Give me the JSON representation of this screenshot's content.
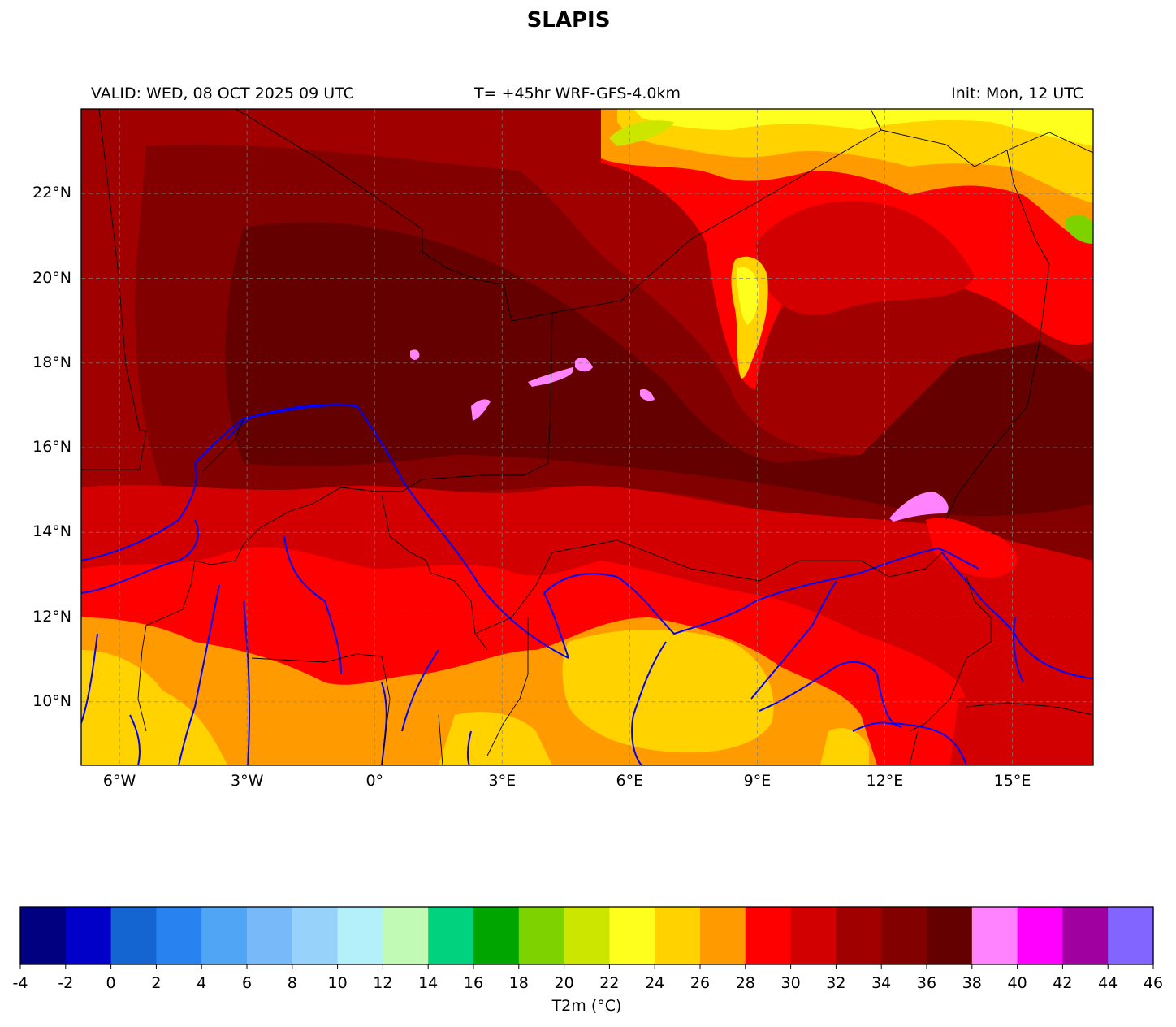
{
  "header": {
    "title": "SLAPIS",
    "valid_text": "VALID: WED, 08 OCT 2025 09 UTC",
    "run_text": "T= +45hr WRF-GFS-4.0km",
    "init_text": "Init: Mon, 12 UTC"
  },
  "map": {
    "lat_labels": [
      "22°N",
      "20°N",
      "18°N",
      "16°N",
      "14°N",
      "12°N",
      "10°N"
    ],
    "lon_labels": [
      "6°W",
      "3°W",
      "0°",
      "3°E",
      "6°E",
      "9°E",
      "12°E",
      "15°E"
    ],
    "extent": {
      "lon_min": -6.9,
      "lon_max": 16.9,
      "lat_min": 8.5,
      "lat_max": 24.0
    },
    "gridlines": true,
    "field": "T2m"
  },
  "colorbar": {
    "label": "T2m (°C)",
    "ticks": [
      "-4",
      "-2",
      "0",
      "2",
      "4",
      "6",
      "8",
      "10",
      "12",
      "14",
      "16",
      "18",
      "20",
      "22",
      "24",
      "26",
      "28",
      "30",
      "32",
      "34",
      "36",
      "38",
      "40",
      "42",
      "44",
      "46"
    ],
    "colors": [
      "#000080",
      "#0000c8",
      "#1464d2",
      "#2882f0",
      "#50a5f5",
      "#78b9fa",
      "#96d2fa",
      "#b4f0fa",
      "#c0fab4",
      "#00d27d",
      "#00a500",
      "#7dd200",
      "#cde600",
      "#ffff1e",
      "#ffd200",
      "#ff9b00",
      "#ff0000",
      "#d20000",
      "#a00000",
      "#820000",
      "#640000",
      "#ff82ff",
      "#ff00ff",
      "#a000a0",
      "#8264ff"
    ]
  }
}
